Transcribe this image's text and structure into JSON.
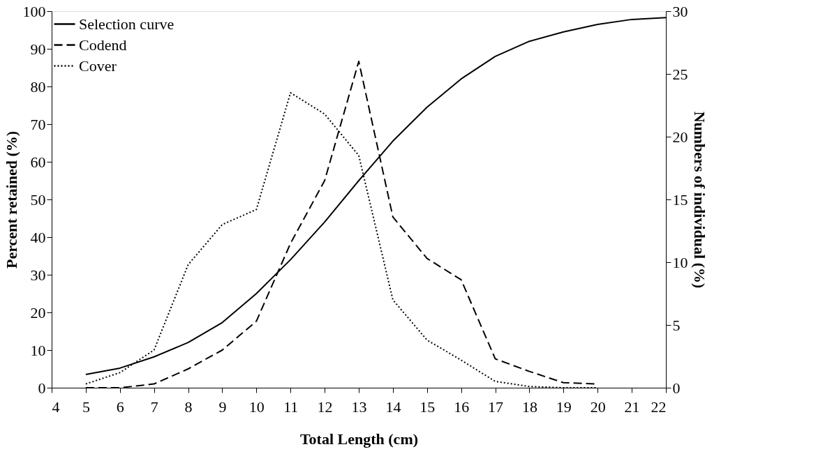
{
  "chart_data": {
    "type": "line",
    "xlabel": "Total Length (cm)",
    "ylabel": "Percent retained (%)",
    "y2label": "Numbers of individual (%)",
    "xlim": [
      4,
      22
    ],
    "xticks": [
      4,
      5,
      6,
      7,
      8,
      9,
      10,
      11,
      12,
      13,
      14,
      15,
      16,
      17,
      18,
      19,
      20,
      21,
      22
    ],
    "ylim": [
      0,
      100
    ],
    "yticks": [
      0,
      10,
      20,
      30,
      40,
      50,
      60,
      70,
      80,
      90,
      100
    ],
    "y2lim": [
      0,
      30
    ],
    "y2ticks": [
      0,
      5,
      10,
      15,
      20,
      25,
      30
    ],
    "grid": false,
    "legend": "top left",
    "marker": "none",
    "series": [
      {
        "name": "Selection curve",
        "color": "#000000",
        "line_style": "solid",
        "x": [
          5,
          6,
          7,
          8,
          9,
          10,
          11,
          12,
          13,
          14,
          15,
          16,
          17,
          18,
          19,
          20,
          21,
          22
        ],
        "values": [
          3.5,
          5.2,
          8.2,
          12,
          17.3,
          25,
          34,
          44,
          55,
          65.5,
          74.5,
          82,
          88,
          92,
          94.5,
          96.5,
          97.8,
          98.3
        ]
      },
      {
        "name": "Codend",
        "color": "#000000",
        "line_style": "dashed",
        "axis": "y2",
        "x": [
          5,
          6,
          7,
          8,
          9,
          10,
          11,
          12,
          13,
          14,
          15,
          16,
          17,
          18,
          19,
          20
        ],
        "values": [
          0,
          0,
          0.3,
          1.5,
          3,
          5.3,
          11.5,
          16.5,
          26,
          13.6,
          10.3,
          8.6,
          2.3,
          1.3,
          0.4,
          0.3
        ]
      },
      {
        "name": "Cover",
        "color": "#000000",
        "line_style": "dotted",
        "axis": "y2",
        "x": [
          5,
          6,
          7,
          8,
          9,
          10,
          11,
          12,
          13,
          14,
          15,
          16,
          17,
          18,
          19,
          20
        ],
        "values": [
          0.3,
          1.2,
          3,
          9.8,
          13,
          14.2,
          23.5,
          21.8,
          18.5,
          7,
          3.8,
          2.2,
          0.5,
          0.1,
          0,
          0
        ]
      }
    ]
  }
}
